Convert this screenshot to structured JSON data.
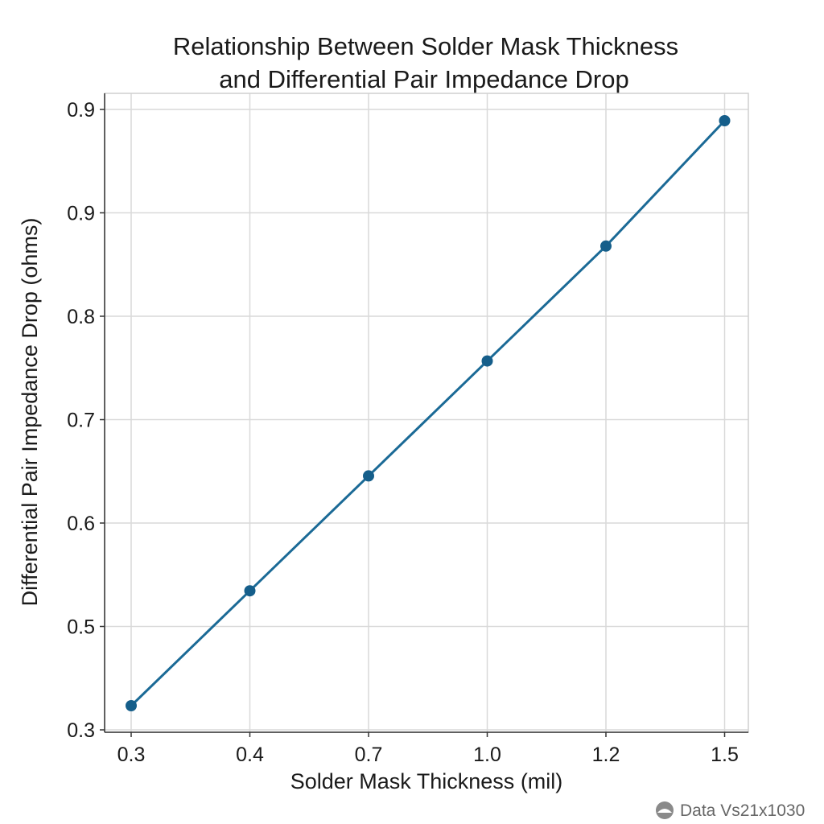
{
  "chart_data": {
    "type": "line",
    "title_line1": "Relationship Between Solder Mask Thickness",
    "title_line2": "and Differential Pair Impedance Drop",
    "xlabel": "Solder Mask Thickness (mil)",
    "ylabel": "Differential Pair Impedance Drop (ohms)",
    "x_ticks": [
      "0.3",
      "0.4",
      "0.7",
      "1.0",
      "1.2",
      "1.5"
    ],
    "y_ticks": [
      "0.3",
      "0.5",
      "0.6",
      "0.7",
      "0.8",
      "0.9",
      "0.9"
    ],
    "x": [
      0.3,
      0.4,
      0.7,
      1.0,
      1.2,
      1.5
    ],
    "values": [
      0.31,
      0.42,
      0.53,
      0.64,
      0.75,
      0.87
    ],
    "ylim": [
      0.3,
      0.9
    ],
    "grid": true,
    "line_color": "#1b6a96",
    "marker_color": "#155e8a"
  },
  "watermark": {
    "text": "Data Vs21x1030"
  }
}
